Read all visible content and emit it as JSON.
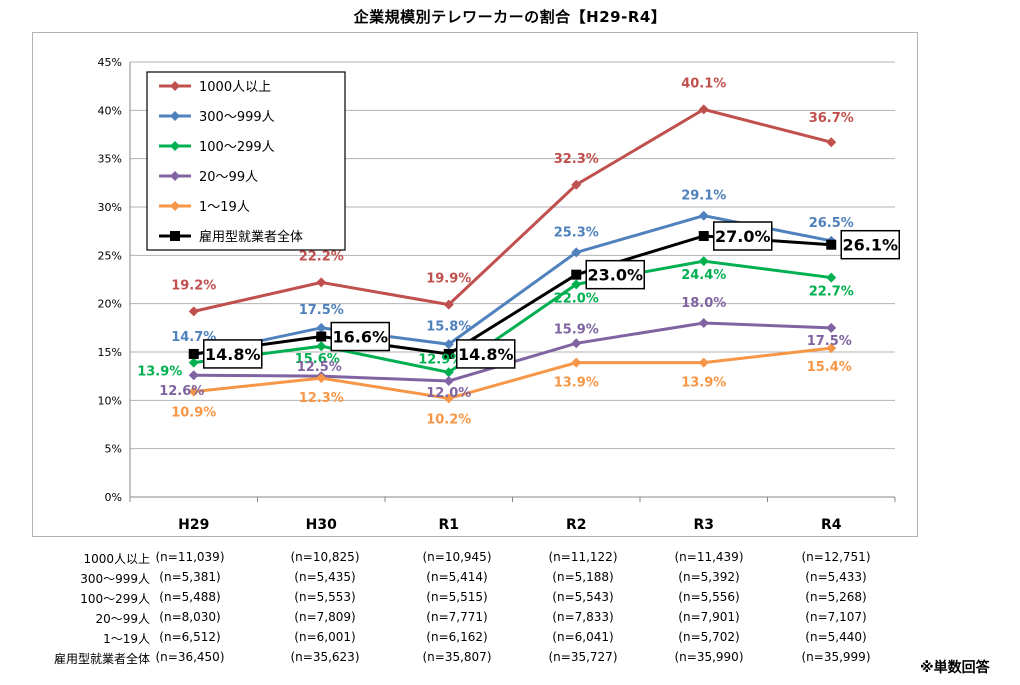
{
  "chart_data": {
    "type": "line",
    "title": "企業規模別テレワーカーの割合【H29-R4】",
    "categories": [
      "H29",
      "H30",
      "R1",
      "R2",
      "R3",
      "R4"
    ],
    "ylim": [
      0,
      45
    ],
    "yticks": [
      "0%",
      "5%",
      "10%",
      "15%",
      "20%",
      "25%",
      "30%",
      "35%",
      "40%",
      "45%"
    ],
    "legend_position": "top-left",
    "series": [
      {
        "name": "1000人以上",
        "color": "#c0504d",
        "marker": "diamond",
        "values": [
          19.2,
          22.2,
          19.9,
          32.3,
          40.1,
          36.7
        ],
        "labels": [
          "19.2%",
          "22.2%",
          "19.9%",
          "32.3%",
          "40.1%",
          "36.7%"
        ]
      },
      {
        "name": "300〜999人",
        "color": "#4f81bd",
        "marker": "diamond",
        "values": [
          14.7,
          17.5,
          15.8,
          25.3,
          29.1,
          26.5
        ],
        "labels": [
          "14.7%",
          "17.5%",
          "15.8%",
          "25.3%",
          "29.1%",
          "26.5%"
        ]
      },
      {
        "name": "100〜299人",
        "color": "#00b050",
        "marker": "diamond",
        "values": [
          13.9,
          15.6,
          12.9,
          22.0,
          24.4,
          22.7
        ],
        "labels": [
          "13.9%",
          "15.6%",
          "12.9%",
          "22.0%",
          "24.4%",
          "22.7%"
        ]
      },
      {
        "name": "20〜99人",
        "color": "#8064a2",
        "marker": "diamond",
        "values": [
          12.6,
          12.5,
          12.0,
          15.9,
          18.0,
          17.5
        ],
        "labels": [
          "12.6%",
          "12.5%",
          "12.0%",
          "15.9%",
          "18.0%",
          "17.5%"
        ]
      },
      {
        "name": "1〜19人",
        "color": "#f79646",
        "marker": "diamond",
        "values": [
          10.9,
          12.3,
          10.2,
          13.9,
          13.9,
          15.4
        ],
        "labels": [
          "10.9%",
          "12.3%",
          "10.2%",
          "13.9%",
          "13.9%",
          "15.4%"
        ]
      },
      {
        "name": "雇用型就業者全体",
        "color": "#000000",
        "marker": "square",
        "values": [
          14.8,
          16.6,
          14.8,
          23.0,
          27.0,
          26.1
        ],
        "labels": [
          "14.8%",
          "16.6%",
          "14.8%",
          "23.0%",
          "27.0%",
          "26.1%"
        ]
      }
    ]
  },
  "sample_table": {
    "rows": [
      {
        "label": "1000人以上",
        "values": [
          "(n=11,039)",
          "(n=10,825)",
          "(n=10,945)",
          "(n=11,122)",
          "(n=11,439)",
          "(n=12,751)"
        ]
      },
      {
        "label": "300〜999人",
        "values": [
          "(n=5,381)",
          "(n=5,435)",
          "(n=5,414)",
          "(n=5,188)",
          "(n=5,392)",
          "(n=5,433)"
        ]
      },
      {
        "label": "100〜299人",
        "values": [
          "(n=5,488)",
          "(n=5,553)",
          "(n=5,515)",
          "(n=5,543)",
          "(n=5,556)",
          "(n=5,268)"
        ]
      },
      {
        "label": "20〜99人",
        "values": [
          "(n=8,030)",
          "(n=7,809)",
          "(n=7,771)",
          "(n=7,833)",
          "(n=7,901)",
          "(n=7,107)"
        ]
      },
      {
        "label": "1〜19人",
        "values": [
          "(n=6,512)",
          "(n=6,001)",
          "(n=6,162)",
          "(n=6,041)",
          "(n=5,702)",
          "(n=5,440)"
        ]
      },
      {
        "label": "雇用型就業者全体",
        "values": [
          "(n=36,450)",
          "(n=35,623)",
          "(n=35,807)",
          "(n=35,727)",
          "(n=35,990)",
          "(n=35,999)"
        ]
      }
    ]
  },
  "footnote": "※単数回答"
}
